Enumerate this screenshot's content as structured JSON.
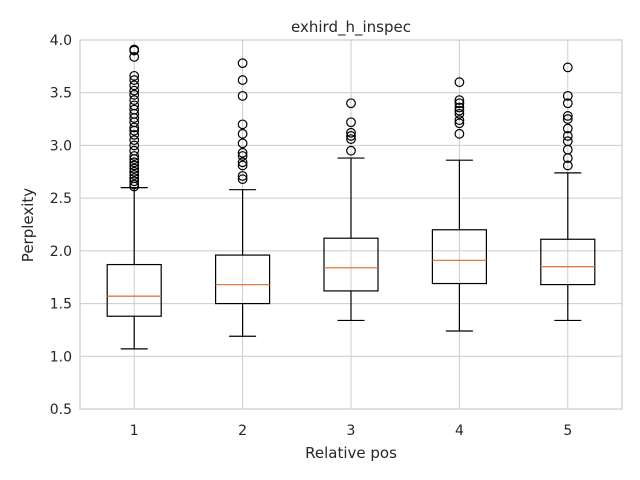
{
  "chart_data": {
    "type": "box",
    "title": "exhird_h_inspec",
    "xlabel": "Relative pos",
    "ylabel": "Perplexity",
    "ylim": [
      0.5,
      4.0
    ],
    "yticks": [
      "0.5",
      "1.0",
      "1.5",
      "2.0",
      "2.5",
      "3.0",
      "3.5",
      "4.0"
    ],
    "categories": [
      "1",
      "2",
      "3",
      "4",
      "5"
    ],
    "grid": true,
    "median_color": "#e07b39",
    "boxes": [
      {
        "category": "1",
        "whisker_low": 1.07,
        "q1": 1.38,
        "median": 1.57,
        "q3": 1.87,
        "whisker_high": 2.6,
        "fliers": [
          2.61,
          2.63,
          2.66,
          2.69,
          2.72,
          2.75,
          2.78,
          2.81,
          2.84,
          2.87,
          2.9,
          2.95,
          3.0,
          3.05,
          3.1,
          3.14,
          3.17,
          3.22,
          3.26,
          3.3,
          3.34,
          3.38,
          3.43,
          3.48,
          3.52,
          3.57,
          3.62,
          3.66,
          3.84,
          3.9,
          3.91
        ]
      },
      {
        "category": "2",
        "whisker_low": 1.19,
        "q1": 1.5,
        "median": 1.68,
        "q3": 1.96,
        "whisker_high": 2.58,
        "fliers": [
          2.68,
          2.71,
          2.81,
          2.84,
          2.9,
          2.93,
          3.02,
          3.11,
          3.2,
          3.47,
          3.62,
          3.78
        ]
      },
      {
        "category": "3",
        "whisker_low": 1.34,
        "q1": 1.62,
        "median": 1.84,
        "q3": 2.12,
        "whisker_high": 2.88,
        "fliers": [
          2.95,
          3.06,
          3.09,
          3.12,
          3.22,
          3.4
        ]
      },
      {
        "category": "4",
        "whisker_low": 1.24,
        "q1": 1.69,
        "median": 1.91,
        "q3": 2.2,
        "whisker_high": 2.86,
        "fliers": [
          3.11,
          3.21,
          3.24,
          3.3,
          3.33,
          3.36,
          3.4,
          3.43,
          3.6
        ]
      },
      {
        "category": "5",
        "whisker_low": 1.34,
        "q1": 1.68,
        "median": 1.85,
        "q3": 2.11,
        "whisker_high": 2.74,
        "fliers": [
          2.81,
          2.88,
          2.96,
          3.04,
          3.09,
          3.16,
          3.25,
          3.28,
          3.4,
          3.47,
          3.74
        ]
      }
    ]
  }
}
